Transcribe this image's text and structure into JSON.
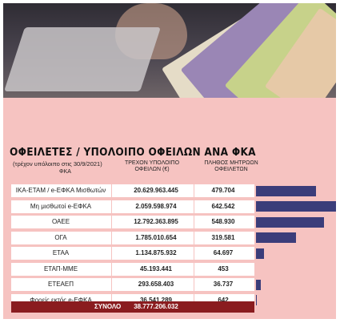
{
  "title": "ΟΦΕΙΛΕΤΕΣ / ΥΠΟΛΟΙΠΟ ΟΦΕΙΛΩΝ ΑΝΑ ΦΚΑ",
  "subtitle": "(τρέχον υπόλοιπο στις 30/9/2021)",
  "headers": {
    "fka": "ΦΚΑ",
    "debt_line1": "ΤΡΕΧΟΝ ΥΠΟΛΟΙΠΟ",
    "debt_line2": "ΟΦΕΙΛΩΝ (€)",
    "count_line1": "ΠΛΗΘΟΣ ΜΗΤΡΩΩΝ",
    "count_line2": "ΟΦΕΙΛΕΤΩΝ"
  },
  "total": {
    "label": "ΣΥΝΟΛΟ",
    "value": "38.777.206.032"
  },
  "colors": {
    "bar": "#3b3d7a",
    "total_bg": "#8a1c1f",
    "panel": "#f6c3c1"
  },
  "chart_data": {
    "type": "table",
    "bar_metric": "debtors",
    "rows": [
      {
        "fka": "ΙΚΑ-ΕΤΑΜ / e-ΕΦΚΑ Μισθωτών",
        "debt": "20.629.963.445",
        "debtors": "479.704",
        "debtors_value": 479704
      },
      {
        "fka": "Μη μισθωτοί e-ΕΦΚΑ",
        "debt": "2.059.598.974",
        "debtors": "642.542",
        "debtors_value": 642542
      },
      {
        "fka": "ΟΑΕΕ",
        "debt": "12.792.363.895",
        "debtors": "548.930",
        "debtors_value": 548930
      },
      {
        "fka": "ΟΓΑ",
        "debt": "1.785.010.654",
        "debtors": "319.581",
        "debtors_value": 319581
      },
      {
        "fka": "ΕΤΑΑ",
        "debt": "1.134.875.932",
        "debtors": "64.697",
        "debtors_value": 64697
      },
      {
        "fka": "ΕΤΑΠ-ΜΜΕ",
        "debt": "45.193.441",
        "debtors": "453",
        "debtors_value": 453
      },
      {
        "fka": "ΕΤΕΑΕΠ",
        "debt": "293.658.403",
        "debtors": "36.737",
        "debtors_value": 36737
      },
      {
        "fka": "Φορείς εκτός e-ΕΦΚΑ",
        "debt": "36.541.289",
        "debtors": "642",
        "debtors_value": 642
      }
    ]
  }
}
